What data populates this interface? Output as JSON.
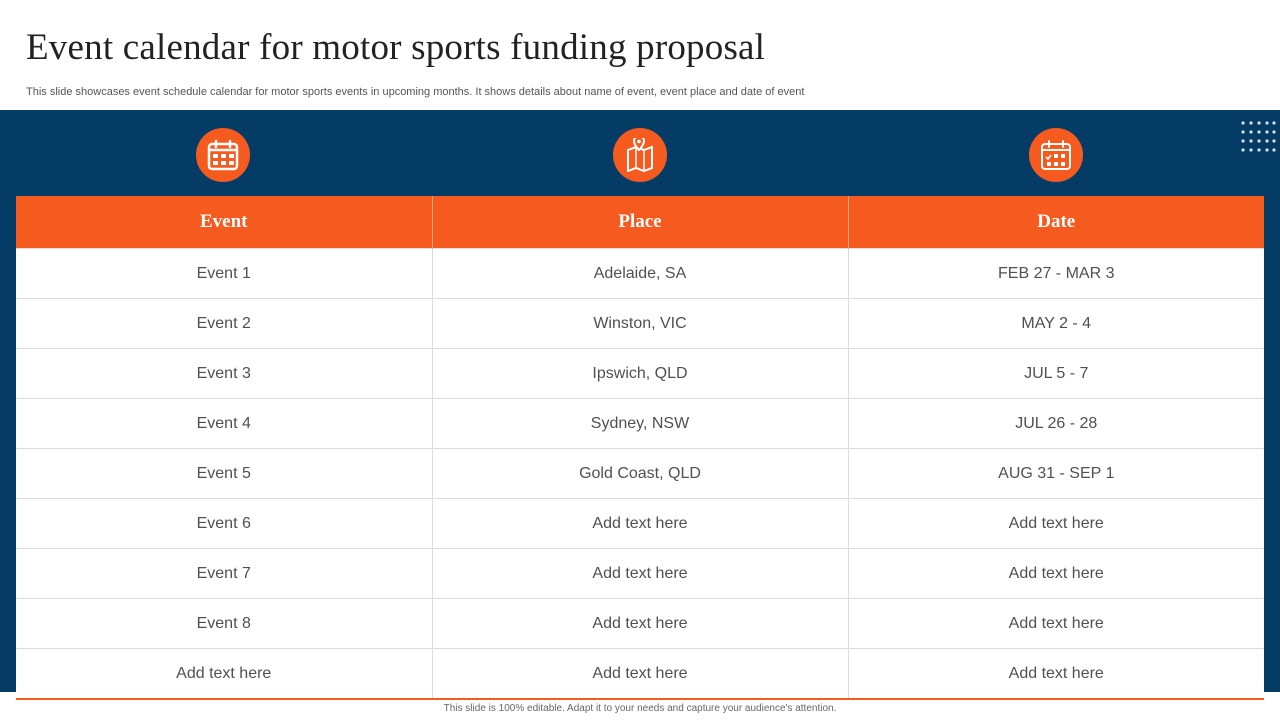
{
  "header": {
    "title": "Event calendar for motor sports funding proposal",
    "subtitle": "This slide showcases event schedule calendar for motor sports events in upcoming months. It shows details about name of event, event place and date of event"
  },
  "icons": [
    "calendar-icon",
    "map-pin-icon",
    "calendar-check-icon"
  ],
  "colors": {
    "accent": "#f55a1f",
    "band": "#043c66"
  },
  "table": {
    "headers": [
      "Event",
      "Place",
      "Date"
    ],
    "rows": [
      [
        "Event 1",
        "Adelaide, SA",
        "FEB 27 - MAR 3"
      ],
      [
        "Event 2",
        "Winston, VIC",
        "MAY 2 - 4"
      ],
      [
        "Event 3",
        "Ipswich, QLD",
        "JUL 5 - 7"
      ],
      [
        "Event 4",
        "Sydney, NSW",
        "JUL 26 - 28"
      ],
      [
        "Event 5",
        "Gold Coast, QLD",
        "AUG 31 - SEP 1"
      ],
      [
        "Event 6",
        "Add text here",
        "Add text here"
      ],
      [
        "Event 7",
        "Add text here",
        "Add text here"
      ],
      [
        "Event 8",
        "Add text here",
        "Add text here"
      ],
      [
        "Add text here",
        "Add text here",
        "Add text here"
      ]
    ]
  },
  "footer": "This slide is 100% editable. Adapt it to your needs and capture your audience's attention."
}
